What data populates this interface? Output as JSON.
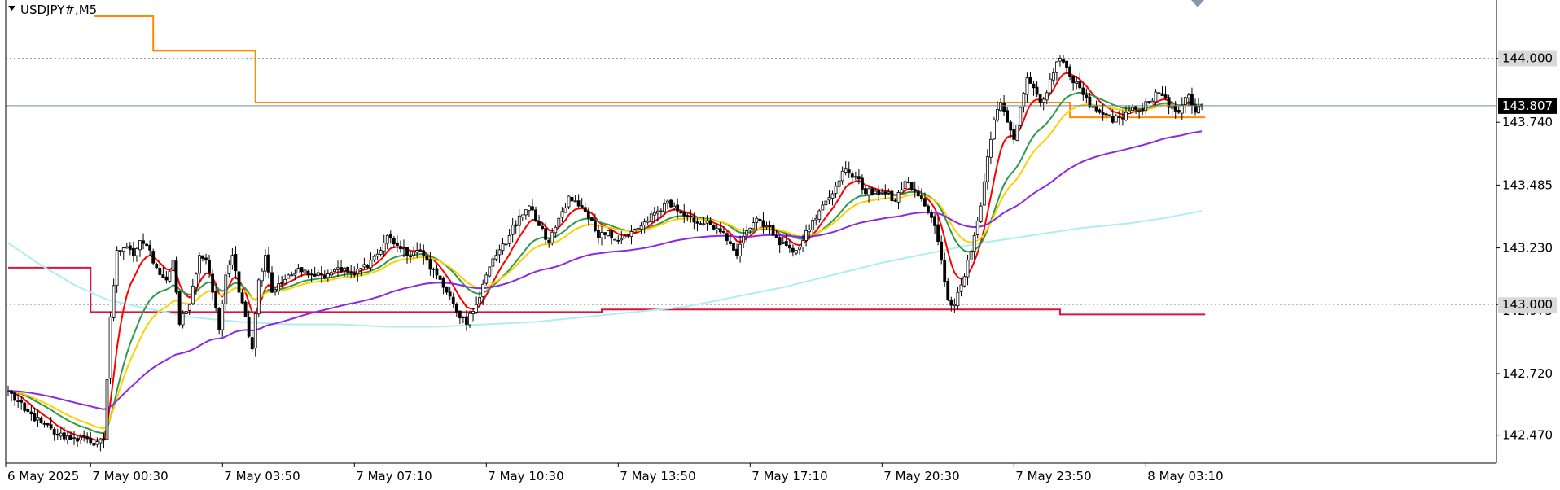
{
  "header": {
    "symbol_label": "USDJPY#,M5",
    "symbol_marker": "triangle-down-icon"
  },
  "colors": {
    "background": "#ffffff",
    "frame": "#000000",
    "candle": "#000000",
    "grid_dotted": "#a0a0a0",
    "bid_line": "#6e8aa8",
    "tag_background": "#d9d9d9",
    "ma_fast": "#ff0000",
    "ma_green": "#2e9a4a",
    "ma_yellow": "#ffd000",
    "ma_purple": "#8a2be2",
    "ma_cyan": "#aeeef2",
    "level_orange": "#ff8c00",
    "level_red": "#dc143c"
  },
  "chart_data": {
    "type": "candlestick",
    "symbol": "USDJPY#",
    "timeframe": "M5",
    "y_ticks": [
      "144.000",
      "143.740",
      "143.485",
      "143.230",
      "143.000",
      "142.720",
      "142.470"
    ],
    "ylim": [
      142.36,
      144.17
    ],
    "current_price": "143.807",
    "hidden_tick_fragment": "142.975",
    "x_ticks": [
      "6 May 2025",
      "7 May 00:30",
      "7 May 03:50",
      "7 May 07:10",
      "7 May 10:30",
      "7 May 13:50",
      "7 May 17:10",
      "7 May 20:30",
      "7 May 23:50",
      "8 May 03:10"
    ],
    "x_tick_bar_index": [
      0,
      26,
      66,
      106,
      146,
      186,
      226,
      266,
      306,
      346
    ],
    "bar_count": 363,
    "closes_anchors": [
      [
        0,
        142.65
      ],
      [
        5,
        142.57
      ],
      [
        10,
        142.52
      ],
      [
        15,
        142.47
      ],
      [
        20,
        142.46
      ],
      [
        25,
        142.44
      ],
      [
        29,
        142.45
      ],
      [
        31,
        142.95
      ],
      [
        33,
        143.22
      ],
      [
        35,
        143.23
      ],
      [
        38,
        143.2
      ],
      [
        40,
        143.26
      ],
      [
        42,
        143.24
      ],
      [
        45,
        143.15
      ],
      [
        48,
        143.1
      ],
      [
        50,
        143.18
      ],
      [
        52,
        142.92
      ],
      [
        55,
        143.0
      ],
      [
        58,
        143.2
      ],
      [
        60,
        143.18
      ],
      [
        62,
        143.05
      ],
      [
        64,
        142.9
      ],
      [
        66,
        143.12
      ],
      [
        68,
        143.2
      ],
      [
        70,
        143.05
      ],
      [
        72,
        142.95
      ],
      [
        74,
        142.82
      ],
      [
        76,
        143.1
      ],
      [
        78,
        143.2
      ],
      [
        80,
        143.05
      ],
      [
        85,
        143.12
      ],
      [
        90,
        143.14
      ],
      [
        95,
        143.12
      ],
      [
        100,
        143.15
      ],
      [
        105,
        143.12
      ],
      [
        110,
        143.18
      ],
      [
        113,
        143.22
      ],
      [
        115,
        143.28
      ],
      [
        118,
        143.24
      ],
      [
        121,
        143.2
      ],
      [
        124,
        143.22
      ],
      [
        127,
        143.18
      ],
      [
        130,
        143.12
      ],
      [
        133,
        143.05
      ],
      [
        136,
        142.97
      ],
      [
        139,
        142.92
      ],
      [
        142,
        143.0
      ],
      [
        145,
        143.12
      ],
      [
        148,
        143.2
      ],
      [
        152,
        143.28
      ],
      [
        155,
        143.36
      ],
      [
        158,
        143.4
      ],
      [
        161,
        143.32
      ],
      [
        164,
        143.25
      ],
      [
        167,
        143.35
      ],
      [
        170,
        143.44
      ],
      [
        173,
        143.4
      ],
      [
        176,
        143.35
      ],
      [
        179,
        143.27
      ],
      [
        182,
        143.3
      ],
      [
        185,
        143.26
      ],
      [
        188,
        143.28
      ],
      [
        191,
        143.31
      ],
      [
        194,
        143.34
      ],
      [
        197,
        143.38
      ],
      [
        200,
        143.42
      ],
      [
        203,
        143.38
      ],
      [
        206,
        143.36
      ],
      [
        209,
        143.33
      ],
      [
        212,
        143.34
      ],
      [
        215,
        143.31
      ],
      [
        218,
        143.26
      ],
      [
        221,
        143.2
      ],
      [
        224,
        143.3
      ],
      [
        227,
        143.35
      ],
      [
        230,
        143.32
      ],
      [
        233,
        143.27
      ],
      [
        236,
        143.24
      ],
      [
        239,
        143.22
      ],
      [
        242,
        143.3
      ],
      [
        245,
        143.35
      ],
      [
        248,
        143.42
      ],
      [
        251,
        143.48
      ],
      [
        254,
        143.55
      ],
      [
        257,
        143.52
      ],
      [
        260,
        143.45
      ],
      [
        263,
        143.46
      ],
      [
        266,
        143.45
      ],
      [
        269,
        143.42
      ],
      [
        272,
        143.5
      ],
      [
        275,
        143.46
      ],
      [
        278,
        143.4
      ],
      [
        281,
        143.32
      ],
      [
        283,
        143.18
      ],
      [
        285,
        143.02
      ],
      [
        287,
        143.0
      ],
      [
        289,
        143.08
      ],
      [
        291,
        143.18
      ],
      [
        293,
        143.28
      ],
      [
        295,
        143.4
      ],
      [
        297,
        143.6
      ],
      [
        299,
        143.75
      ],
      [
        301,
        143.82
      ],
      [
        303,
        143.74
      ],
      [
        305,
        143.67
      ],
      [
        307,
        143.8
      ],
      [
        309,
        143.92
      ],
      [
        311,
        143.88
      ],
      [
        313,
        143.82
      ],
      [
        315,
        143.86
      ],
      [
        317,
        143.94
      ],
      [
        319,
        144.0
      ],
      [
        321,
        143.96
      ],
      [
        323,
        143.9
      ],
      [
        325,
        143.88
      ],
      [
        327,
        143.84
      ],
      [
        329,
        143.8
      ],
      [
        331,
        143.78
      ],
      [
        333,
        143.77
      ],
      [
        335,
        143.74
      ],
      [
        337,
        143.76
      ],
      [
        339,
        143.78
      ],
      [
        341,
        143.8
      ],
      [
        343,
        143.79
      ],
      [
        346,
        143.82
      ],
      [
        349,
        143.86
      ],
      [
        352,
        143.8
      ],
      [
        355,
        143.78
      ],
      [
        358,
        143.85
      ],
      [
        360,
        143.78
      ],
      [
        362,
        143.81
      ]
    ],
    "moving_averages": [
      {
        "color_key": "ma_fast",
        "period": 8
      },
      {
        "color_key": "ma_green",
        "period": 20
      },
      {
        "color_key": "ma_yellow",
        "period": 28
      },
      {
        "color_key": "ma_purple",
        "period": 90
      }
    ],
    "cyan_curve": [
      [
        0,
        143.25
      ],
      [
        10,
        143.16
      ],
      [
        20,
        143.08
      ],
      [
        30,
        143.02
      ],
      [
        40,
        142.99
      ],
      [
        55,
        142.95
      ],
      [
        70,
        142.93
      ],
      [
        85,
        142.92
      ],
      [
        100,
        142.92
      ],
      [
        115,
        142.91
      ],
      [
        130,
        142.91
      ],
      [
        145,
        142.92
      ],
      [
        160,
        142.93
      ],
      [
        175,
        142.95
      ],
      [
        190,
        142.97
      ],
      [
        205,
        142.99
      ],
      [
        220,
        143.03
      ],
      [
        235,
        143.07
      ],
      [
        250,
        143.12
      ],
      [
        265,
        143.17
      ],
      [
        280,
        143.21
      ],
      [
        295,
        143.25
      ],
      [
        310,
        143.28
      ],
      [
        325,
        143.31
      ],
      [
        340,
        143.33
      ],
      [
        350,
        143.35
      ],
      [
        362,
        143.38
      ]
    ],
    "level_orange_steps": [
      [
        26,
        44,
        144.17
      ],
      [
        44,
        75,
        144.03
      ],
      [
        75,
        322,
        143.82
      ],
      [
        322,
        363,
        143.76
      ]
    ],
    "level_red_steps": [
      [
        0,
        25,
        143.15
      ],
      [
        25,
        180,
        142.97
      ],
      [
        180,
        319,
        142.98
      ],
      [
        319,
        363,
        142.96
      ]
    ]
  }
}
